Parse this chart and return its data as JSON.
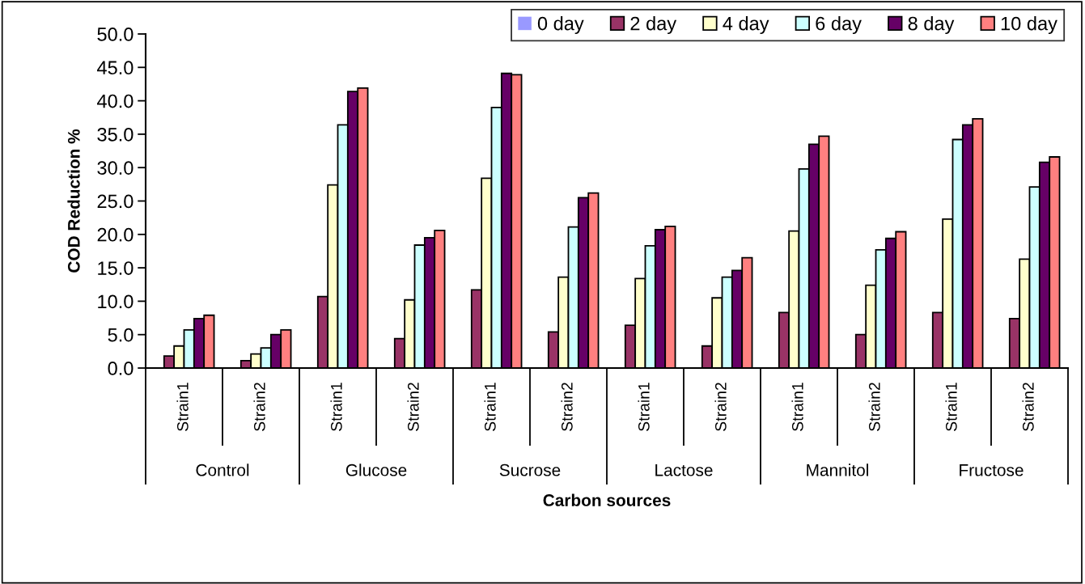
{
  "chart_data": {
    "type": "bar",
    "xlabel": "Carbon sources",
    "ylabel": "COD Reduction %",
    "categories": [
      "Strain1",
      "Strain2",
      "Strain1",
      "Strain2",
      "Strain1",
      "Strain2",
      "Strain1",
      "Strain2",
      "Strain1",
      "Strain2",
      "Strain1",
      "Strain2"
    ],
    "annotations": [
      "Control",
      "Glucose",
      "Sucrose",
      "Lactose",
      "Mannitol",
      "Fructose"
    ],
    "series": [
      {
        "name": "0 day",
        "color": "#9999ff",
        "values": [
          0,
          0,
          0,
          0,
          0,
          0,
          0,
          0,
          0,
          0,
          0,
          0
        ]
      },
      {
        "name": "2 day",
        "color": "#993366",
        "values": [
          1.8,
          1.1,
          10.7,
          4.4,
          11.7,
          5.4,
          6.4,
          3.3,
          8.3,
          5.0,
          8.3,
          7.4
        ]
      },
      {
        "name": "4 day",
        "color": "#ffffcc",
        "values": [
          3.3,
          2.1,
          27.4,
          10.2,
          28.4,
          13.6,
          13.4,
          10.5,
          20.5,
          12.4,
          22.3,
          16.3
        ]
      },
      {
        "name": "6 day",
        "color": "#ccffff",
        "values": [
          5.7,
          3.0,
          36.4,
          18.4,
          39.0,
          21.1,
          18.3,
          13.6,
          29.8,
          17.7,
          34.2,
          27.1
        ]
      },
      {
        "name": "8 day",
        "color": "#660066",
        "values": [
          7.4,
          5.0,
          41.4,
          19.5,
          44.1,
          25.5,
          20.7,
          14.6,
          33.5,
          19.4,
          36.4,
          30.8
        ]
      },
      {
        "name": "10 day",
        "color": "#ff8080",
        "values": [
          7.9,
          5.7,
          41.9,
          20.6,
          43.9,
          26.2,
          21.2,
          16.5,
          34.7,
          20.4,
          37.3,
          31.6
        ]
      }
    ],
    "ylim": [
      0,
      50
    ],
    "yticks": [
      {
        "value": 0,
        "label": "0.0"
      },
      {
        "value": 5,
        "label": "5.0"
      },
      {
        "value": 10,
        "label": "10.0"
      },
      {
        "value": 15,
        "label": "15.0"
      },
      {
        "value": 20,
        "label": "20.0"
      },
      {
        "value": 25,
        "label": "25.0"
      },
      {
        "value": 30,
        "label": "30.0"
      },
      {
        "value": 35,
        "label": "35.0"
      },
      {
        "value": 40,
        "label": "40.0"
      },
      {
        "value": 45,
        "label": "45.0"
      },
      {
        "value": 50,
        "label": "50.0"
      }
    ],
    "grid": false,
    "legend": "top right"
  }
}
